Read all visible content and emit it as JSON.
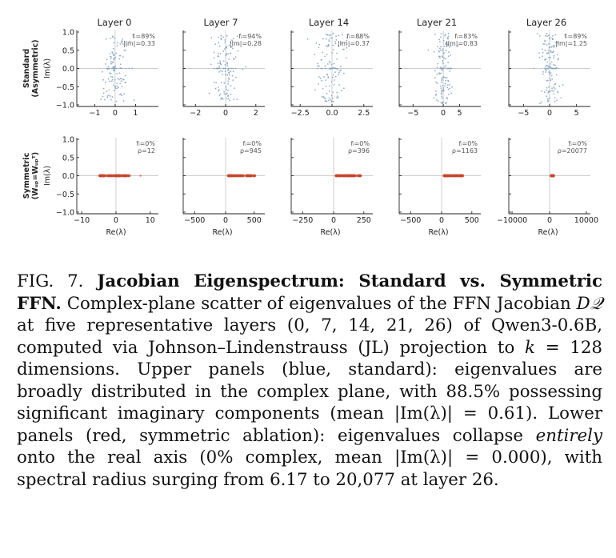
{
  "figure": {
    "rows": [
      {
        "label_lines": [
          "Standard",
          "(Asymmetric)"
        ],
        "ylabel": "Im(λ)",
        "yticks": [
          "1.0",
          "0.5",
          "0.0",
          "−0.5",
          "−1.0"
        ]
      },
      {
        "label_lines": [
          "Symmetric",
          "(Wᵤₚ=Wᵤₚᵀ)"
        ],
        "ylabel": "Im(λ)",
        "yticks": [
          "1.0",
          "0.5",
          "0.0",
          "−0.5",
          "−1.0"
        ]
      }
    ],
    "layers": [
      "Layer 0",
      "Layer 7",
      "Layer 14",
      "Layer 21",
      "Layer 26"
    ],
    "xlabel": "Re(λ)",
    "colors": {
      "standard": "#7f9fbf",
      "symmetric": "#c8462d",
      "axis": "#222222",
      "zero_line": "#bbbbbb"
    },
    "standard_panels": [
      {
        "xticks": [
          "−1",
          "0",
          "1"
        ],
        "stat1": "fₗ=89%",
        "stat2": "|Im|=0.33"
      },
      {
        "xticks": [
          "−2",
          "0",
          "2"
        ],
        "stat1": "fₗ=94%",
        "stat2": "|Im|=0.28"
      },
      {
        "xticks": [
          "−2.5",
          "0.0",
          "2.5"
        ],
        "stat1": "fₗ=88%",
        "stat2": "|Im|=0.37"
      },
      {
        "xticks": [
          "−5",
          "0",
          "5"
        ],
        "stat1": "fₗ=83%",
        "stat2": "|Im|=0.83"
      },
      {
        "xticks": [
          "−5",
          "0",
          "5"
        ],
        "stat1": "fₗ=89%",
        "stat2": "|Im|=1.25"
      }
    ],
    "symmetric_panels": [
      {
        "xticks": [
          "−10",
          "0",
          "10"
        ],
        "stat1": "fₗ=0%",
        "stat2": "ρ=12"
      },
      {
        "xticks": [
          "−500",
          "0",
          "500"
        ],
        "stat1": "fₗ=0%",
        "stat2": "ρ=945"
      },
      {
        "xticks": [
          "−250",
          "0",
          "250"
        ],
        "stat1": "fₗ=0%",
        "stat2": "ρ=396"
      },
      {
        "xticks": [
          "−500",
          "0",
          "500"
        ],
        "stat1": "fₗ=0%",
        "stat2": "ρ=1163"
      },
      {
        "xticks": [
          "−10000",
          "0",
          "10000"
        ],
        "stat1": "fₗ=0%",
        "stat2": "ρ=20077"
      }
    ]
  },
  "caption": {
    "label": "FIG. 7.",
    "title": "Jacobian Eigenspectrum: Standard vs. Symmetric FFN.",
    "text_1": "Complex-plane scatter of eigenvalues of the FFN Jacobian",
    "math_1": "D𝒬",
    "text_2": "at five representative layers (0, 7, 14, 21, 26) of Qwen3-0.6B, computed via Johnson–Lindenstrauss (JL) projection to",
    "math_2": "k",
    "text_3": "= 128 dimensions. Upper panels (blue, standard): eigenvalues are broadly distributed in the complex plane, with 88.5% possessing significant imaginary components (mean |Im(λ)| = 0.61). Lower panels (red, symmetric ablation): eigenvalues collapse",
    "emph": "entirely",
    "text_4": "onto the real axis (0% complex, mean |Im(λ)| = 0.000), with spectral radius surging from 6.17 to 20,077 at layer 26."
  }
}
